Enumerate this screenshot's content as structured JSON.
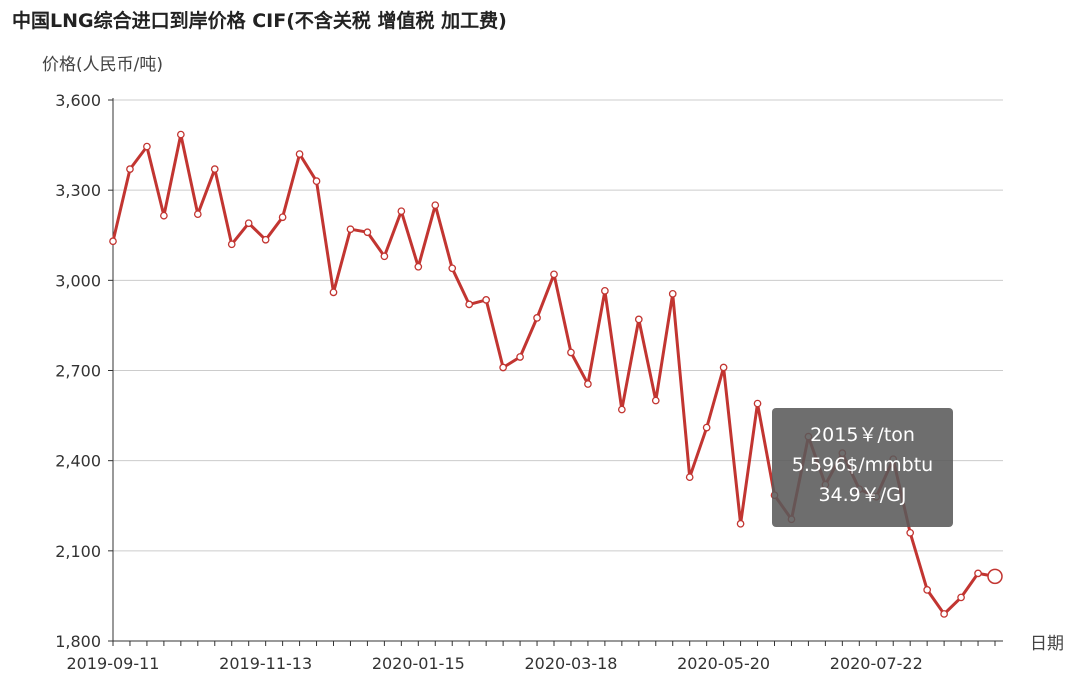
{
  "chart_data": {
    "type": "line",
    "title": "中国LNG综合进口到岸价格  CIF(不含关税  增值税 加工费)",
    "ylabel": "价格(人民币/吨)",
    "xlabel": "日期",
    "ylim": [
      1800,
      3600
    ],
    "yticks": [
      "1,800",
      "2,100",
      "2,400",
      "2,700",
      "3,000",
      "3,300",
      "3,600"
    ],
    "ytick_values": [
      1800,
      2100,
      2400,
      2700,
      3000,
      3300,
      3600
    ],
    "xticks": [
      {
        "label": "2019-09-11",
        "index": 0
      },
      {
        "label": "2019-11-13",
        "index": 9
      },
      {
        "label": "2020-01-15",
        "index": 18
      },
      {
        "label": "2020-03-18",
        "index": 27
      },
      {
        "label": "2020-05-20",
        "index": 36
      },
      {
        "label": "2020-07-22",
        "index": 45
      }
    ],
    "grid": true,
    "series": [
      {
        "color": "#c23531",
        "values": [
          3130,
          3370,
          3445,
          3215,
          3485,
          3220,
          3370,
          3120,
          3190,
          3135,
          3210,
          3420,
          3330,
          2960,
          3170,
          3160,
          3080,
          3230,
          3045,
          3250,
          3040,
          2920,
          2935,
          2710,
          2745,
          2875,
          3020,
          2760,
          2655,
          2965,
          2570,
          2870,
          2600,
          2955,
          2345,
          2510,
          2710,
          2190,
          2590,
          2285,
          2205,
          2480,
          2320,
          2425,
          2305,
          2280,
          2405,
          2160,
          1970,
          1890,
          1945,
          2025,
          2015
        ]
      }
    ],
    "highlight_index": 52
  },
  "tooltip": {
    "line1": "2015￥/ton",
    "line2": "5.596$/mmbtu",
    "line3": "34.9￥/GJ"
  }
}
